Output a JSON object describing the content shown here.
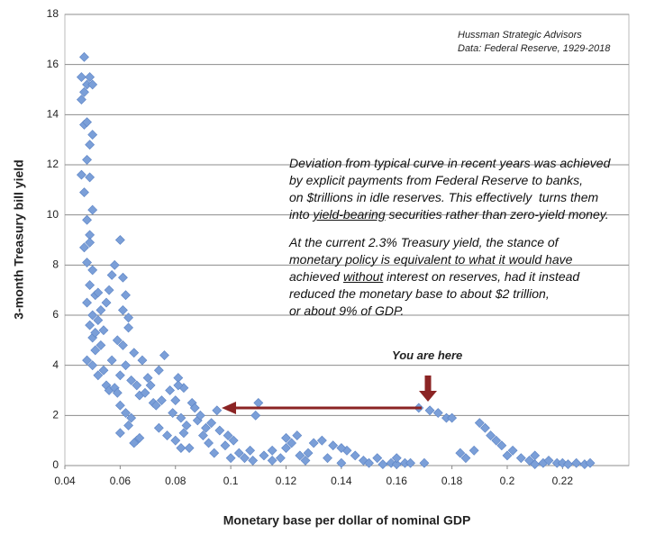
{
  "chart_data": {
    "type": "scatter",
    "x_label": "Monetary base per dollar of nominal GDP",
    "y_label": "3-month Treasury bill yield",
    "source": [
      "Hussman Strategic Advisors",
      "Data: Federal Reserve, 1929-2018"
    ],
    "annotation": [
      [
        "Deviation from typical curve in recent years was achieved"
      ],
      [
        "by explicit payments from Federal Reserve to banks,"
      ],
      [
        "on $trillions in idle reserves. This effectively  turns them"
      ],
      [
        "into ",
        "yield-bearing",
        " securities rather than zero-yield money."
      ],
      [
        "At the current 2.3% Treasury yield, the stance of"
      ],
      [
        "monetary policy is equivalent to what it would have"
      ],
      [
        "achieved ",
        "without",
        " interest on reserves, had it instead"
      ],
      [
        "reduced the monetary base to about $2 trillion,"
      ],
      [
        "or about 9% of GDP."
      ]
    ],
    "marker_label": "You are here",
    "color": "#7b9fd8",
    "grid": true,
    "xlim": [
      0.04,
      0.244
    ],
    "ylim": [
      0,
      18
    ],
    "xticks": [
      0.04,
      0.06,
      0.08,
      0.1,
      0.12,
      0.14,
      0.16,
      0.18,
      0.2,
      0.22
    ],
    "yticks": [
      0,
      2,
      4,
      6,
      8,
      10,
      12,
      14,
      16,
      18
    ],
    "x": [
      0.047,
      0.046,
      0.047,
      0.046,
      0.049,
      0.048,
      0.05,
      0.047,
      0.048,
      0.049,
      0.05,
      0.048,
      0.047,
      0.046,
      0.049,
      0.05,
      0.048,
      0.049,
      0.047,
      0.048,
      0.05,
      0.049,
      0.051,
      0.048,
      0.05,
      0.049,
      0.052,
      0.05,
      0.051,
      0.048,
      0.049,
      0.052,
      0.051,
      0.053,
      0.05,
      0.054,
      0.052,
      0.055,
      0.053,
      0.056,
      0.054,
      0.057,
      0.055,
      0.058,
      0.056,
      0.059,
      0.057,
      0.06,
      0.058,
      0.061,
      0.059,
      0.06,
      0.062,
      0.061,
      0.063,
      0.06,
      0.064,
      0.062,
      0.065,
      0.061,
      0.063,
      0.066,
      0.064,
      0.067,
      0.065,
      0.06,
      0.062,
      0.063,
      0.066,
      0.067,
      0.068,
      0.07,
      0.072,
      0.069,
      0.071,
      0.074,
      0.073,
      0.075,
      0.076,
      0.074,
      0.078,
      0.077,
      0.079,
      0.08,
      0.081,
      0.082,
      0.08,
      0.083,
      0.084,
      0.085,
      0.086,
      0.082,
      0.081,
      0.083,
      0.087,
      0.088,
      0.09,
      0.091,
      0.089,
      0.092,
      0.094,
      0.095,
      0.093,
      0.096,
      0.098,
      0.1,
      0.099,
      0.101,
      0.103,
      0.105,
      0.107,
      0.11,
      0.109,
      0.108,
      0.112,
      0.115,
      0.118,
      0.12,
      0.122,
      0.125,
      0.124,
      0.127,
      0.13,
      0.128,
      0.133,
      0.135,
      0.137,
      0.14,
      0.142,
      0.145,
      0.148,
      0.15,
      0.153,
      0.155,
      0.158,
      0.16,
      0.163,
      0.165,
      0.168,
      0.17,
      0.172,
      0.175,
      0.178,
      0.18,
      0.183,
      0.185,
      0.188,
      0.19,
      0.192,
      0.194,
      0.196,
      0.198,
      0.2,
      0.202,
      0.205,
      0.208,
      0.21,
      0.213,
      0.215,
      0.218,
      0.22,
      0.222,
      0.225,
      0.228,
      0.23,
      0.115,
      0.12,
      0.14,
      0.16,
      0.21
    ],
    "y": [
      16.3,
      15.5,
      14.9,
      14.6,
      15.5,
      15.2,
      15.2,
      13.6,
      13.7,
      12.8,
      13.2,
      12.2,
      10.9,
      11.6,
      11.5,
      10.2,
      9.8,
      9.2,
      8.7,
      8.1,
      7.8,
      7.2,
      6.8,
      6.5,
      6.0,
      5.6,
      5.8,
      5.1,
      4.6,
      4.2,
      8.9,
      6.9,
      5.3,
      4.8,
      4.0,
      3.8,
      3.6,
      3.2,
      6.2,
      3.0,
      5.4,
      4.2,
      6.5,
      3.1,
      7.0,
      5.0,
      7.6,
      9.0,
      8.0,
      6.2,
      2.9,
      1.3,
      2.1,
      4.8,
      5.5,
      2.4,
      3.4,
      6.8,
      4.5,
      7.5,
      1.6,
      1.0,
      1.9,
      2.8,
      0.9,
      3.6,
      4.0,
      5.9,
      3.2,
      1.1,
      4.2,
      3.5,
      2.5,
      2.9,
      3.2,
      3.8,
      2.4,
      2.6,
      4.4,
      1.5,
      3.0,
      1.2,
      2.1,
      1.0,
      3.5,
      0.7,
      2.6,
      3.1,
      1.6,
      0.7,
      2.5,
      1.9,
      3.2,
      1.3,
      2.3,
      1.8,
      1.2,
      1.5,
      2.0,
      0.9,
      0.5,
      2.2,
      1.7,
      1.4,
      0.8,
      0.3,
      1.2,
      1.0,
      0.5,
      0.3,
      0.6,
      2.5,
      2.0,
      0.2,
      0.4,
      0.6,
      0.3,
      1.1,
      0.9,
      0.4,
      1.2,
      0.2,
      0.9,
      0.5,
      1.0,
      0.3,
      0.8,
      0.1,
      0.6,
      0.4,
      0.2,
      0.1,
      0.3,
      0.05,
      0.1,
      0.05,
      0.1,
      0.1,
      2.3,
      0.1,
      2.2,
      2.1,
      1.9,
      1.9,
      0.5,
      0.3,
      0.6,
      1.7,
      1.5,
      1.2,
      1.0,
      0.8,
      0.4,
      0.6,
      0.3,
      0.2,
      0.4,
      0.1,
      0.2,
      0.1,
      0.1,
      0.05,
      0.1,
      0.05,
      0.1,
      0.2,
      0.7,
      0.7,
      0.3,
      0.05
    ]
  }
}
